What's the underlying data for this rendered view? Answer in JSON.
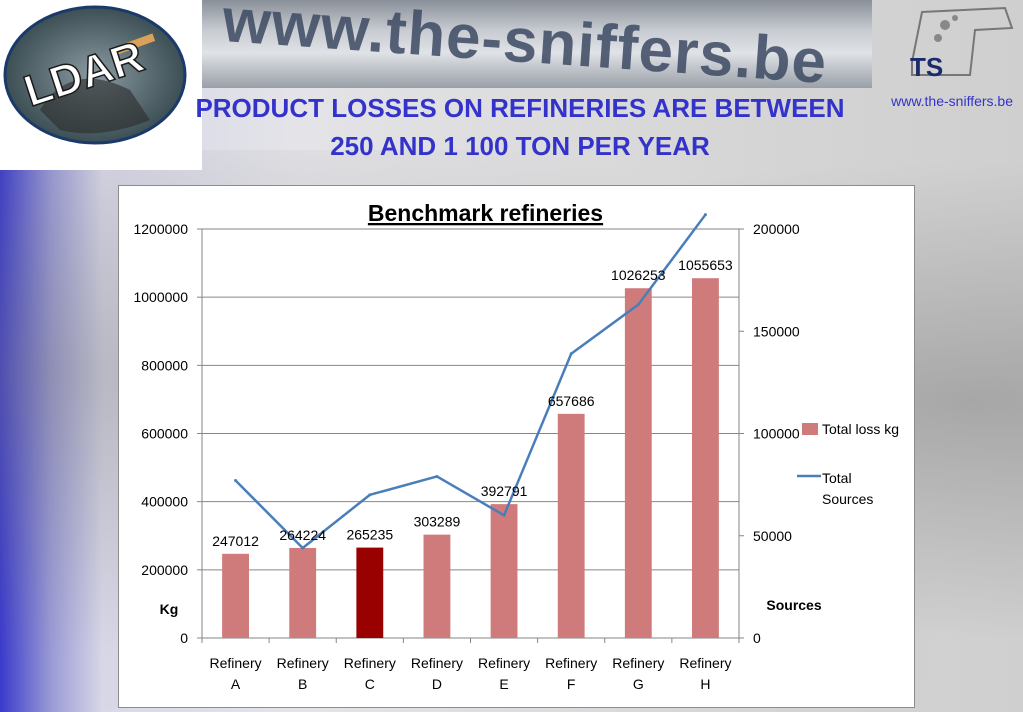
{
  "header": {
    "headline_line1": "PRODUCT LOSSES ON REFINERIES ARE BETWEEN",
    "headline_line2": "250 AND 1 100 TON PER YEAR",
    "site_url": "www.the-sniffers.be",
    "banner_text": "www.the-sniffers.be",
    "logo_left_text": "LDAR",
    "logo_right_text": "TS"
  },
  "colors": {
    "headline": "#3333cc",
    "bar": "#d07b7b",
    "bar_highlight": "#990000",
    "line": "#4a7ebb"
  },
  "chart_data": {
    "type": "bar+line",
    "title": "Benchmark refineries",
    "categories": [
      "Refinery A",
      "Refinery B",
      "Refinery C",
      "Refinery D",
      "Refinery E",
      "Refinery F",
      "Refinery G",
      "Refinery H"
    ],
    "series": [
      {
        "name": "Total loss kg",
        "type": "bar",
        "axis": "left",
        "values": [
          247012,
          264224,
          265235,
          303289,
          392791,
          657686,
          1026253,
          1055653
        ],
        "data_labels": [
          "247012",
          "264224",
          "265235",
          "303289",
          "392791",
          "657686",
          "1026253",
          "1055653"
        ],
        "highlight_index": 2
      },
      {
        "name": "Total Sources",
        "type": "line",
        "axis": "right",
        "values": [
          77000,
          44000,
          70000,
          79000,
          60000,
          139000,
          163000,
          207000
        ]
      }
    ],
    "ylabel_left": "Kg",
    "ylabel_right": "Sources",
    "ylim_left": [
      0,
      1200000
    ],
    "ylim_right": [
      0,
      200000
    ],
    "yticks_left": [
      0,
      200000,
      400000,
      600000,
      800000,
      1000000,
      1200000
    ],
    "yticks_right": [
      0,
      50000,
      100000,
      150000,
      200000
    ],
    "ytick_labels_left": [
      "0",
      "200000",
      "400000",
      "600000",
      "800000",
      "1000000",
      "1200000"
    ],
    "ytick_labels_right": [
      "0",
      "50000",
      "100000",
      "150000",
      "200000"
    ],
    "grid": true,
    "legend_position": "right"
  }
}
